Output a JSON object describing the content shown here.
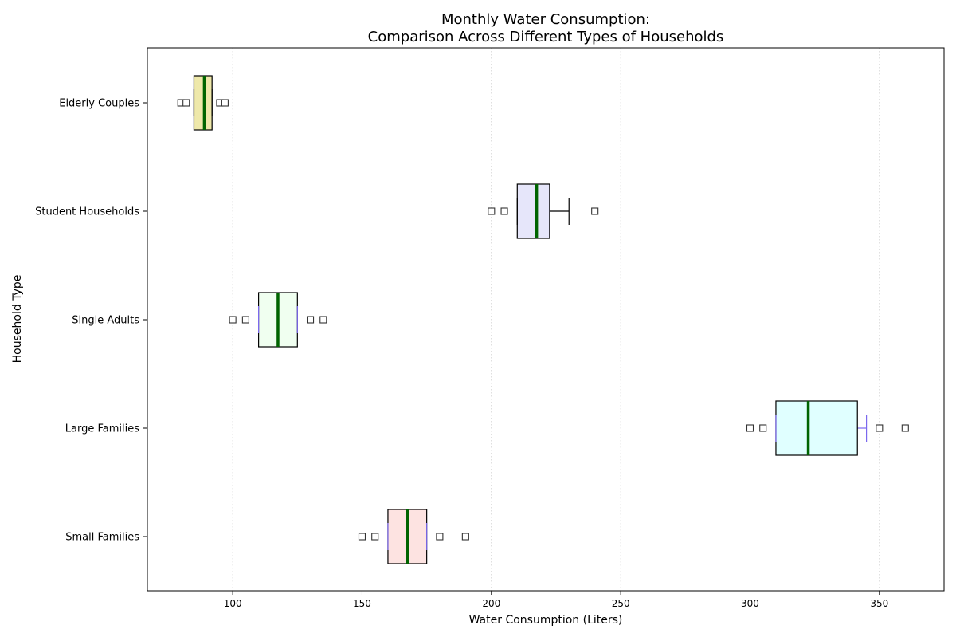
{
  "chart_data": {
    "type": "boxplot",
    "orientation": "horizontal",
    "title_line1": "Monthly Water Consumption:",
    "title_line2": "Comparison Across Different Types of Households",
    "xlabel": "Water Consumption (Liters)",
    "ylabel": "Household Type",
    "xlim": [
      67,
      375
    ],
    "xticks": [
      100,
      150,
      200,
      250,
      300,
      350
    ],
    "grid": "x-dotted",
    "median_color": "#006400",
    "categories": [
      {
        "name": "Small Families",
        "min": 160,
        "q1": 160,
        "median": 167.5,
        "q3": 175,
        "max": 175,
        "outliers": [
          150,
          155,
          180,
          190
        ],
        "fill": "#fde3e1",
        "whisker_color": "#7b68ee"
      },
      {
        "name": "Large Families",
        "min": 310,
        "q1": 310,
        "median": 322.5,
        "q3": 341.5,
        "max": 345,
        "outliers": [
          300,
          305,
          350,
          360
        ],
        "fill": "#e0ffff",
        "whisker_color": "#7b68ee"
      },
      {
        "name": "Single Adults",
        "min": 110,
        "q1": 110,
        "median": 117.5,
        "q3": 125,
        "max": 125,
        "outliers": [
          100,
          105,
          130,
          135
        ],
        "fill": "#f0fff0",
        "whisker_color": "#7b68ee"
      },
      {
        "name": "Student Households",
        "min": 210,
        "q1": 210,
        "median": 217.5,
        "q3": 222.5,
        "max": 230,
        "outliers": [
          200,
          205,
          240
        ],
        "fill": "#e6e6fa",
        "whisker_color": "#000000"
      },
      {
        "name": "Elderly Couples",
        "min": 85,
        "q1": 85,
        "median": 89,
        "q3": 92,
        "max": 92,
        "outliers": [
          80,
          82,
          95,
          97
        ],
        "fill": "#eee8aa",
        "whisker_color": "#000000"
      }
    ]
  }
}
